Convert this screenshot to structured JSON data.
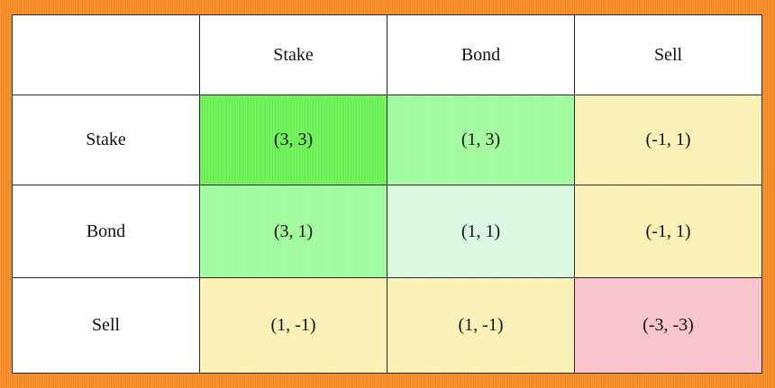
{
  "matrix": {
    "column_headers": [
      "Stake",
      "Bond",
      "Sell"
    ],
    "row_headers": [
      "Stake",
      "Bond",
      "Sell"
    ],
    "cells": [
      [
        "(3, 3)",
        "(1, 3)",
        "(-1, 1)"
      ],
      [
        "(3, 1)",
        "(1, 1)",
        "(-1, 1)"
      ],
      [
        "(1, -1)",
        "(1, -1)",
        "(-3, -3)"
      ]
    ]
  },
  "colors": {
    "background": "#f58a2a",
    "strong_green": "#66f04f",
    "light_green": "#9cfb98",
    "pale_mint": "#d7f8df",
    "pale_yellow": "#faf1b2",
    "pink": "#f9c1c9"
  }
}
